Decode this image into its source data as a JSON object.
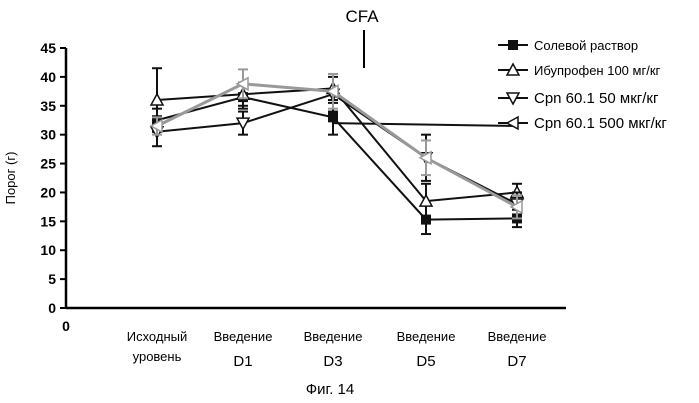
{
  "chart_data": {
    "type": "line",
    "title": "",
    "annotation": "CFA",
    "caption": "Фиг. 14",
    "ylabel": "Порог (г)",
    "xlabel": "",
    "x_origin_label": "0",
    "ylim": [
      0,
      45
    ],
    "yticks": [
      0,
      5,
      10,
      15,
      20,
      25,
      30,
      35,
      40,
      45
    ],
    "categories": [
      {
        "line1": "Исходный",
        "line2": "уровень"
      },
      {
        "line1": "Введение",
        "line2": "D1"
      },
      {
        "line1": "Введение",
        "line2": "D3"
      },
      {
        "line1": "Введение",
        "line2": "D5"
      },
      {
        "line1": "Введение",
        "line2": "D7"
      }
    ],
    "series": [
      {
        "name": "Солевой раствор",
        "marker": "filled-square",
        "color": "#111111",
        "values": [
          32.5,
          36.5,
          33.0,
          15.3,
          15.5
        ],
        "errors": [
          2.0,
          2.0,
          3.0,
          2.5,
          1.5
        ]
      },
      {
        "name": "Ибупрофен 100 мг/кг",
        "marker": "triangle-up",
        "color": "#111111",
        "values": [
          36.0,
          37.0,
          38.0,
          18.5,
          20.0
        ],
        "errors": [
          5.5,
          2.0,
          2.5,
          3.0,
          1.5
        ]
      },
      {
        "name": "Cpn 60.1 50 мкг/кг",
        "marker": "triangle-down",
        "color": "#111111",
        "values": [
          30.5,
          32.0,
          37.0,
          26.0,
          18.0
        ],
        "errors": [
          2.5,
          2.0,
          3.0,
          4.0,
          2.0
        ]
      },
      {
        "name": "Cpn 60.1 500 мкг/кг",
        "marker": "triangle-left",
        "color": "#999999",
        "values": [
          31.5,
          38.8,
          37.5,
          26.0,
          17.5
        ],
        "errors": [
          1.5,
          2.5,
          3.0,
          3.0,
          2.0
        ]
      }
    ],
    "baseline_line": {
      "from_category": 2,
      "to_category": 4,
      "value": 32.0,
      "end_value": 31.5
    },
    "grid": false,
    "legend_position": "top-right"
  }
}
